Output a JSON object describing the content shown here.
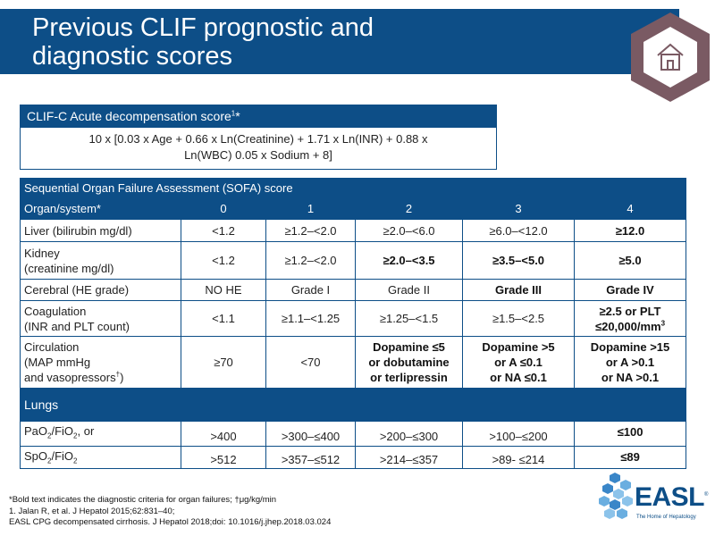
{
  "header": {
    "title_line1": "Previous CLIF prognostic and",
    "title_line2": "diagnostic scores"
  },
  "clif_card": {
    "title": "CLIF-C Acute decompensation score",
    "title_sup": "1",
    "title_suffix": "*",
    "formula_line1": "10 x [0.03 x Age + 0.66 x Ln(Creatinine) + 1.71 x Ln(INR) + 0.88 x",
    "formula_line2": "Ln(WBC) 0.05 x Sodium + 8]"
  },
  "sofa": {
    "title": "Sequential Organ Failure Assessment (SOFA) score",
    "header": [
      "Organ/system*",
      "0",
      "1",
      "2",
      "3",
      "4"
    ],
    "rows": {
      "liver": {
        "label": "Liver (bilirubin mg/dl)",
        "cells": [
          "<1.2",
          "≥1.2–<2.0",
          "≥2.0–<6.0",
          "≥6.0–<12.0",
          "≥12.0"
        ]
      },
      "kidney": {
        "label_line1": "Kidney",
        "label_line2": "(creatinine mg/dl)",
        "cells": [
          "<1.2",
          "≥1.2–<2.0",
          "≥2.0–<3.5",
          "≥3.5–<5.0",
          "≥5.0"
        ]
      },
      "cerebral": {
        "label": "Cerebral (HE grade)",
        "cells": [
          "NO HE",
          "Grade I",
          "Grade II",
          "Grade III",
          "Grade IV"
        ]
      },
      "coagulation": {
        "label_line1": "Coagulation",
        "label_line2": "(INR and PLT count)",
        "cells": [
          "<1.1",
          "≥1.1–<1.25",
          "≥1.25–<1.5",
          "≥1.5–<2.5"
        ],
        "cell4_line1": "≥2.5 or PLT",
        "cell4_line2": "≤20,000/mm",
        "cell4_sup": "3"
      },
      "circulation": {
        "label_line1": "Circulation",
        "label_line2": "(MAP mmHg",
        "label_line3": "and vasopressors",
        "label_sup": "†",
        "label_close": ")",
        "cell0": "≥70",
        "cell1": "<70",
        "cell2": [
          "Dopamine ≤5",
          "or dobutamine",
          "or terlipressin"
        ],
        "cell3": [
          "Dopamine >5",
          "or A ≤0.1",
          "or NA ≤0.1"
        ],
        "cell4": [
          "Dopamine >15",
          "or A >0.1",
          "or NA >0.1"
        ]
      }
    },
    "lungs": {
      "title": "Lungs",
      "pao2": {
        "label_a": "PaO",
        "label_b": "/FiO",
        "label_c": ", or",
        "cells": [
          ">400",
          ">300–≤400",
          ">200–≤300",
          ">100–≤200",
          "≤100"
        ]
      },
      "spo2": {
        "label_a": "SpO",
        "label_b": "/FiO",
        "cells": [
          ">512",
          ">357–≤512",
          ">214–≤357",
          ">89- ≤214",
          "≤89"
        ]
      },
      "subscript": "2"
    }
  },
  "footnotes": {
    "line1": "*Bold text indicates the diagnostic criteria for organ failures; †μg/kg/min",
    "line2": "1. Jalan R, et al. J Hepatol 2015;62:831–40;",
    "line3": "EASL CPG decompensated cirrhosis. J Hepatol 2018;doi: 10.1016/j.jhep.2018.03.024"
  },
  "logo": {
    "name": "EASL",
    "tagline": "The Home of Hepatology",
    "registered": "®"
  },
  "colors": {
    "brand_blue": "#0d4e87",
    "hexagon_border": "#7a5a63"
  },
  "icons": {
    "home": "home-icon"
  }
}
